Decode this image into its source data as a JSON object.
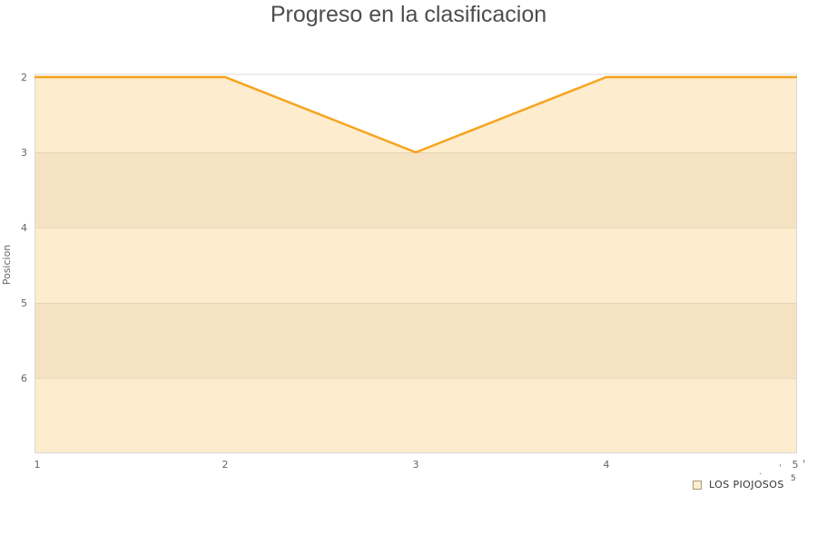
{
  "title": "Progreso en la clasificacion",
  "chart_data": {
    "type": "area",
    "title": "Progreso en la clasificacion",
    "xlabel": "",
    "ylabel": "Posicion",
    "x": [
      1,
      2,
      3,
      4,
      5
    ],
    "series": [
      {
        "name": "LOS PIOJOSOS",
        "values": [
          2,
          2,
          3,
          2,
          2
        ]
      }
    ],
    "x_ticks": [
      "1",
      "2",
      "3",
      "4",
      "5"
    ],
    "y_ticks": [
      "2",
      "3",
      "4",
      "5",
      "6"
    ],
    "xlim": [
      1,
      5
    ],
    "ylim": [
      2,
      7
    ],
    "y_inverted": true,
    "grid": true,
    "alternate_band_pairs": [
      [
        3,
        4
      ],
      [
        5,
        6
      ]
    ],
    "legend_position": "bottom-right",
    "colors": {
      "line": "#f6a41f",
      "area_light": "#fdeccd",
      "area_dark": "#f5e2c2",
      "gridline": "rgba(0,0,0,0.07)",
      "top_gridline": "#d8d8d8",
      "plot_border": "#d9d9d9",
      "title_text": "#4d4d4d",
      "tick_text": "#666666"
    }
  },
  "legend": {
    "label": "LOS PIOJOSOS"
  },
  "artifacts": {
    "small_five": "5",
    "dot": ".",
    "tick": "'",
    "curve": "'"
  }
}
